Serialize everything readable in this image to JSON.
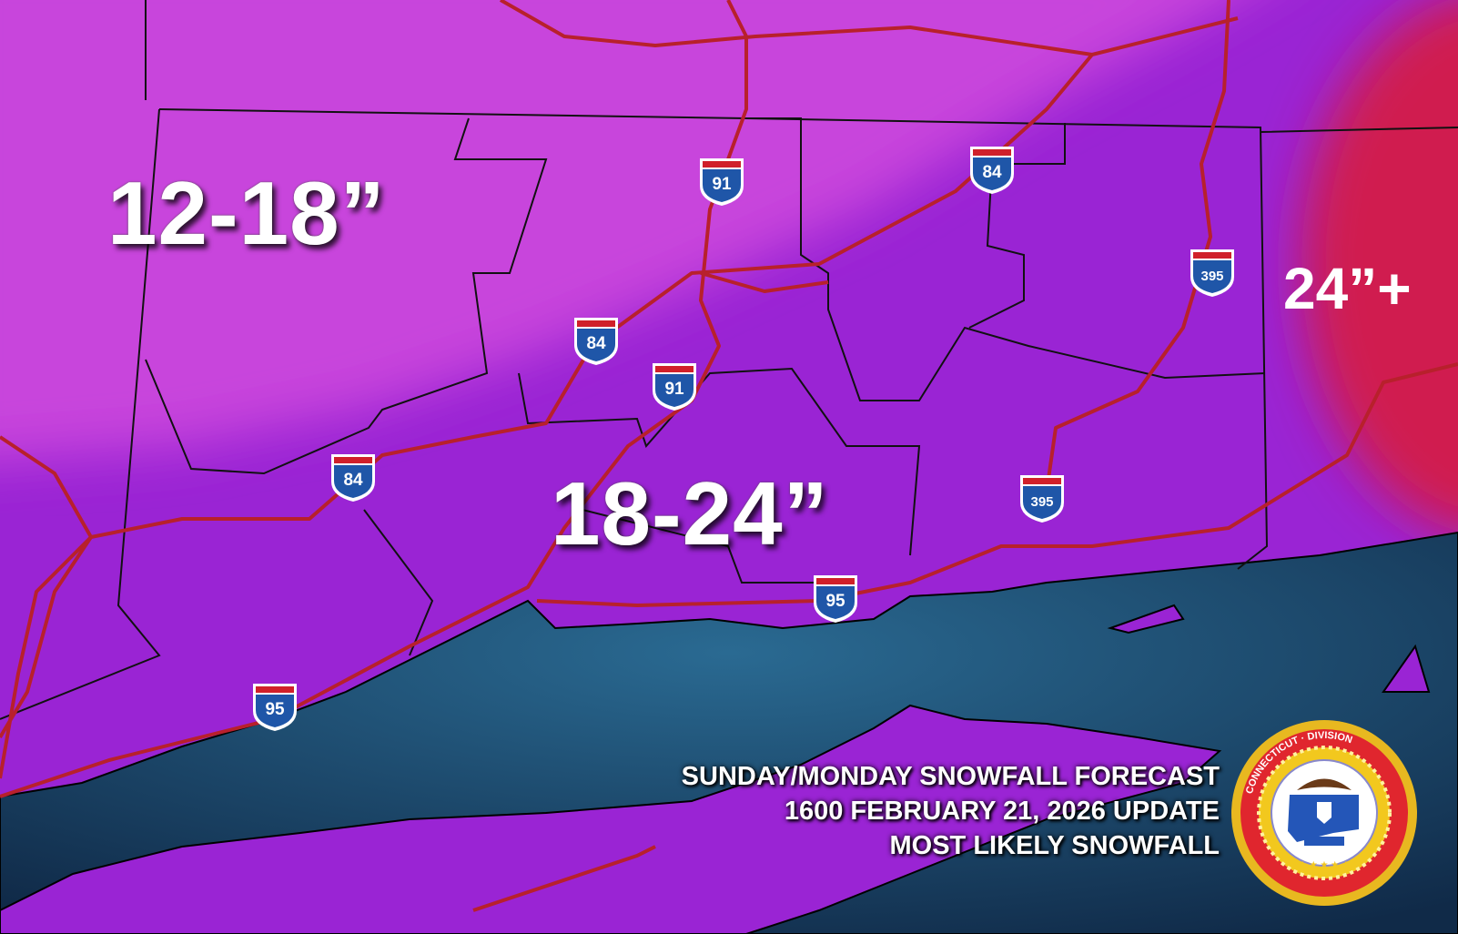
{
  "zones": [
    {
      "label": "12-18”",
      "color": "#c845dc"
    },
    {
      "label": "18-24”",
      "color": "#9a24d4"
    },
    {
      "label": "24”+",
      "color": "#d01a50"
    }
  ],
  "water_color": "#1d4a72",
  "road_color": "#b8202c",
  "shields": [
    "91",
    "84",
    "395",
    "84",
    "91",
    "84",
    "395",
    "95",
    "95"
  ],
  "caption": {
    "line1": "SUNDAY/MONDAY SNOWFALL FORECAST",
    "line2": "1600 FEBRUARY 21, 2026 UPDATE",
    "line3": "MOST LIKELY SNOWFALL"
  },
  "seal": {
    "text": "CONNECTICUT DIVISION EMERGENCY MANAGEMENT & HOMELAND SECURITY",
    "icon": "ct-demhs-seal"
  }
}
